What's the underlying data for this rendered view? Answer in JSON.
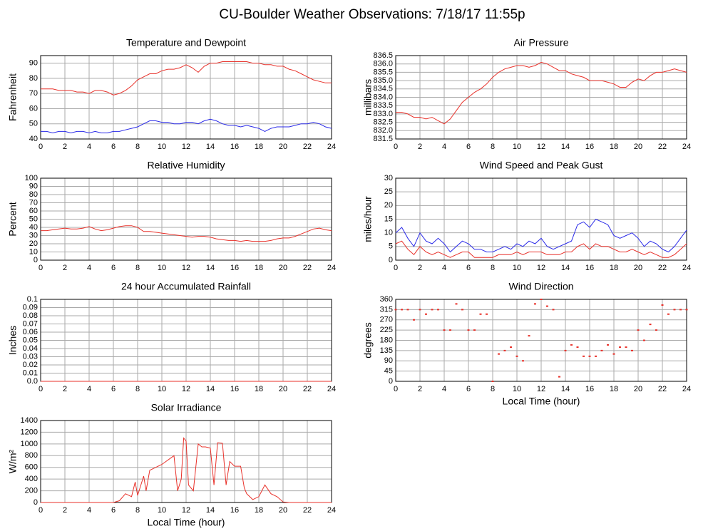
{
  "title": "CU-Boulder Weather Observations: 7/18/17 11:55p",
  "chart_data": [
    {
      "type": "line",
      "title": "Temperature and Dewpoint",
      "ylabel": "Fahrenheit",
      "x": [
        0,
        0.5,
        1,
        1.5,
        2,
        2.5,
        3,
        3.5,
        4,
        4.5,
        5,
        5.5,
        6,
        6.5,
        7,
        7.5,
        8,
        8.5,
        9,
        9.5,
        10,
        10.5,
        11,
        11.5,
        12,
        12.5,
        13,
        13.5,
        14,
        14.5,
        15,
        15.5,
        16,
        16.5,
        17,
        17.5,
        18,
        18.5,
        19,
        19.5,
        20,
        20.5,
        21,
        21.5,
        22,
        22.5,
        23,
        23.5,
        24
      ],
      "series": [
        {
          "color": "#e8312a",
          "values": [
            73,
            73,
            73,
            72,
            72,
            72,
            71,
            71,
            70,
            72,
            72,
            71,
            69,
            70,
            72,
            75,
            79,
            81,
            83,
            83,
            85,
            86,
            86,
            87,
            89,
            87,
            84,
            88,
            90,
            90,
            91,
            91,
            91,
            91,
            91,
            90,
            90,
            89,
            89,
            88,
            88,
            86,
            85,
            83,
            81,
            79,
            78,
            77,
            77
          ]
        },
        {
          "color": "#2a2ae8",
          "values": [
            45,
            45,
            44,
            45,
            45,
            44,
            45,
            45,
            44,
            45,
            44,
            44,
            45,
            45,
            46,
            47,
            48,
            50,
            52,
            52,
            51,
            51,
            50,
            50,
            51,
            51,
            50,
            52,
            53,
            52,
            50,
            49,
            49,
            48,
            49,
            48,
            47,
            45,
            47,
            48,
            48,
            48,
            49,
            50,
            50,
            51,
            50,
            48,
            47
          ]
        }
      ],
      "xlim": [
        0,
        24
      ],
      "xticks": [
        0,
        2,
        4,
        6,
        8,
        10,
        12,
        14,
        16,
        18,
        20,
        22,
        24
      ],
      "ylim": [
        40,
        95
      ],
      "yticks": [
        40,
        50,
        60,
        70,
        80,
        90
      ],
      "grid": true
    },
    {
      "type": "line",
      "title": "Air Pressure",
      "ylabel": "millibars",
      "x": [
        0,
        0.5,
        1,
        1.5,
        2,
        2.5,
        3,
        3.5,
        4,
        4.5,
        5,
        5.5,
        6,
        6.5,
        7,
        7.5,
        8,
        8.5,
        9,
        9.5,
        10,
        10.5,
        11,
        11.5,
        12,
        12.5,
        13,
        13.5,
        14,
        14.5,
        15,
        15.5,
        16,
        16.5,
        17,
        17.5,
        18,
        18.5,
        19,
        19.5,
        20,
        20.5,
        21,
        21.5,
        22,
        22.5,
        23,
        23.5,
        24
      ],
      "series": [
        {
          "color": "#e8312a",
          "values": [
            833.1,
            833.1,
            833.0,
            832.8,
            832.8,
            832.7,
            832.8,
            832.6,
            832.4,
            832.7,
            833.2,
            833.7,
            834.0,
            834.3,
            834.5,
            834.8,
            835.2,
            835.5,
            835.7,
            835.8,
            835.9,
            835.9,
            835.8,
            835.9,
            836.1,
            836.0,
            835.8,
            835.6,
            835.6,
            835.4,
            835.3,
            835.2,
            835.0,
            835.0,
            835.0,
            834.9,
            834.8,
            834.6,
            834.6,
            834.9,
            835.1,
            835.0,
            835.3,
            835.5,
            835.5,
            835.6,
            835.7,
            835.6,
            835.5
          ]
        }
      ],
      "xlim": [
        0,
        24
      ],
      "xticks": [
        0,
        2,
        4,
        6,
        8,
        10,
        12,
        14,
        16,
        18,
        20,
        22,
        24
      ],
      "ylim": [
        831.5,
        836.5
      ],
      "yticks": [
        831.5,
        {
          "value": 832,
          "label": "832.0"
        },
        832.5,
        {
          "value": 833,
          "label": "833.0"
        },
        833.5,
        {
          "value": 834,
          "label": "834.0"
        },
        834.5,
        {
          "value": 835,
          "label": "835.0"
        },
        835.5,
        {
          "value": 836,
          "label": "836.0"
        },
        836.5
      ],
      "grid": true
    },
    {
      "type": "line",
      "title": "Relative Humidity",
      "ylabel": "Percent",
      "x": [
        0,
        0.5,
        1,
        1.5,
        2,
        2.5,
        3,
        3.5,
        4,
        4.5,
        5,
        5.5,
        6,
        6.5,
        7,
        7.5,
        8,
        8.5,
        9,
        9.5,
        10,
        10.5,
        11,
        11.5,
        12,
        12.5,
        13,
        13.5,
        14,
        14.5,
        15,
        15.5,
        16,
        16.5,
        17,
        17.5,
        18,
        18.5,
        19,
        19.5,
        20,
        20.5,
        21,
        21.5,
        22,
        22.5,
        23,
        23.5,
        24
      ],
      "series": [
        {
          "color": "#e8312a",
          "values": [
            36,
            36,
            37,
            38,
            39,
            38,
            38,
            39,
            41,
            38,
            36,
            37,
            39,
            41,
            42,
            42,
            40,
            35,
            35,
            34,
            33,
            32,
            31,
            30,
            29,
            28,
            29,
            29,
            28,
            26,
            25,
            24,
            24,
            23,
            24,
            23,
            23,
            23,
            24,
            26,
            27,
            27,
            29,
            32,
            35,
            38,
            39,
            37,
            36
          ]
        }
      ],
      "xlim": [
        0,
        24
      ],
      "xticks": [
        0,
        2,
        4,
        6,
        8,
        10,
        12,
        14,
        16,
        18,
        20,
        22,
        24
      ],
      "ylim": [
        0,
        100
      ],
      "yticks": [
        0,
        10,
        20,
        30,
        40,
        50,
        60,
        70,
        80,
        90,
        100
      ],
      "grid": true
    },
    {
      "type": "line",
      "title": "Wind Speed and Peak Gust",
      "ylabel": "miles/hour",
      "x": [
        0,
        0.5,
        1,
        1.5,
        2,
        2.5,
        3,
        3.5,
        4,
        4.5,
        5,
        5.5,
        6,
        6.5,
        7,
        7.5,
        8,
        8.5,
        9,
        9.5,
        10,
        10.5,
        11,
        11.5,
        12,
        12.5,
        13,
        13.5,
        14,
        14.5,
        15,
        15.5,
        16,
        16.5,
        17,
        17.5,
        18,
        18.5,
        19,
        19.5,
        20,
        20.5,
        21,
        21.5,
        22,
        22.5,
        23,
        23.5,
        24
      ],
      "series": [
        {
          "color": "#2a2ae8",
          "values": [
            10,
            12,
            8,
            5,
            10,
            7,
            6,
            8,
            6,
            3,
            5,
            7,
            6,
            4,
            4,
            3,
            3,
            4,
            5,
            4,
            6,
            5,
            7,
            6,
            8,
            5,
            4,
            5,
            6,
            7,
            13,
            14,
            12,
            15,
            14,
            13,
            9,
            8,
            9,
            10,
            8,
            5,
            7,
            6,
            4,
            3,
            5,
            8,
            11
          ]
        },
        {
          "color": "#e8312a",
          "values": [
            6,
            7,
            4,
            2,
            5,
            3,
            2,
            3,
            2,
            1,
            2,
            3,
            3,
            1,
            1,
            1,
            1,
            2,
            2,
            2,
            3,
            2,
            3,
            3,
            3,
            2,
            2,
            2,
            3,
            3,
            5,
            6,
            4,
            6,
            5,
            5,
            4,
            3,
            3,
            4,
            3,
            2,
            3,
            2,
            1,
            1,
            2,
            4,
            6
          ]
        }
      ],
      "xlim": [
        0,
        24
      ],
      "xticks": [
        0,
        2,
        4,
        6,
        8,
        10,
        12,
        14,
        16,
        18,
        20,
        22,
        24
      ],
      "ylim": [
        0,
        30
      ],
      "yticks": [
        0,
        5,
        10,
        15,
        20,
        25,
        30
      ],
      "grid": true
    },
    {
      "type": "line",
      "title": "24 hour Accumulated Rainfall",
      "ylabel": "Inches",
      "x": [
        0,
        24
      ],
      "series": [
        {
          "color": "#e8312a",
          "values": [
            0,
            0
          ]
        }
      ],
      "xlim": [
        0,
        24
      ],
      "xticks": [
        0,
        2,
        4,
        6,
        8,
        10,
        12,
        14,
        16,
        18,
        20,
        22,
        24
      ],
      "ylim": [
        0,
        0.1
      ],
      "yticks": [
        {
          "value": 0,
          "label": "0.0"
        },
        0.01,
        0.02,
        0.03,
        0.04,
        0.05,
        0.06,
        0.07,
        0.08,
        0.09,
        0.1
      ],
      "grid": true
    },
    {
      "type": "scatter",
      "title": "Wind Direction",
      "ylabel": "degrees",
      "xlabel": "Local Time (hour)",
      "x": [
        0,
        0.5,
        1,
        1.5,
        2,
        2.5,
        3,
        3.5,
        4,
        4.5,
        5,
        5.5,
        6,
        6.5,
        7,
        7.5,
        8,
        8.5,
        9,
        9.5,
        10,
        10.5,
        11,
        11.5,
        12,
        12.5,
        13,
        13.5,
        14,
        14.5,
        15,
        15.5,
        16,
        16.5,
        17,
        17.5,
        18,
        18.5,
        19,
        19.5,
        20,
        20.5,
        21,
        21.5,
        22,
        22.5,
        23,
        23.5,
        24
      ],
      "series": [
        {
          "color": "#e8312a",
          "values": [
            315,
            315,
            315,
            270,
            315,
            295,
            315,
            315,
            225,
            225,
            340,
            315,
            225,
            225,
            295,
            295,
            0,
            120,
            135,
            150,
            110,
            90,
            200,
            340,
            360,
            330,
            315,
            20,
            135,
            160,
            150,
            110,
            110,
            110,
            135,
            160,
            120,
            150,
            150,
            135,
            225,
            180,
            250,
            225,
            335,
            295,
            315,
            315,
            315
          ]
        }
      ],
      "xlim": [
        0,
        24
      ],
      "xticks": [
        0,
        2,
        4,
        6,
        8,
        10,
        12,
        14,
        16,
        18,
        20,
        22,
        24
      ],
      "ylim": [
        0,
        360
      ],
      "yticks": [
        0,
        45,
        90,
        135,
        180,
        225,
        270,
        315,
        360
      ],
      "grid": true
    },
    {
      "type": "line",
      "title": "Solar Irradiance",
      "ylabel": "W/m²",
      "xlabel": "Local Time (hour)",
      "x": [
        0,
        6,
        6.5,
        7,
        7.5,
        7.8,
        8,
        8.5,
        8.7,
        9,
        10,
        11,
        11.3,
        11.6,
        11.8,
        12,
        12.2,
        12.6,
        13,
        13.3,
        13.6,
        14,
        14.3,
        14.6,
        15,
        15.3,
        15.6,
        16,
        16.5,
        16.8,
        17,
        17.5,
        18,
        18.5,
        19,
        19.5,
        20,
        20.5,
        24
      ],
      "series": [
        {
          "color": "#e8312a",
          "values": [
            0,
            0,
            30,
            150,
            100,
            350,
            120,
            450,
            200,
            550,
            650,
            800,
            200,
            400,
            1100,
            1050,
            300,
            200,
            1000,
            950,
            950,
            930,
            300,
            1020,
            1010,
            300,
            700,
            620,
            620,
            250,
            150,
            50,
            100,
            300,
            150,
            100,
            10,
            0,
            0
          ]
        }
      ],
      "xlim": [
        0,
        24
      ],
      "xticks": [
        0,
        2,
        4,
        6,
        8,
        10,
        12,
        14,
        16,
        18,
        20,
        22,
        24
      ],
      "ylim": [
        0,
        1400
      ],
      "yticks": [
        0,
        200,
        400,
        600,
        800,
        1000,
        1200,
        1400
      ],
      "grid": true
    }
  ]
}
